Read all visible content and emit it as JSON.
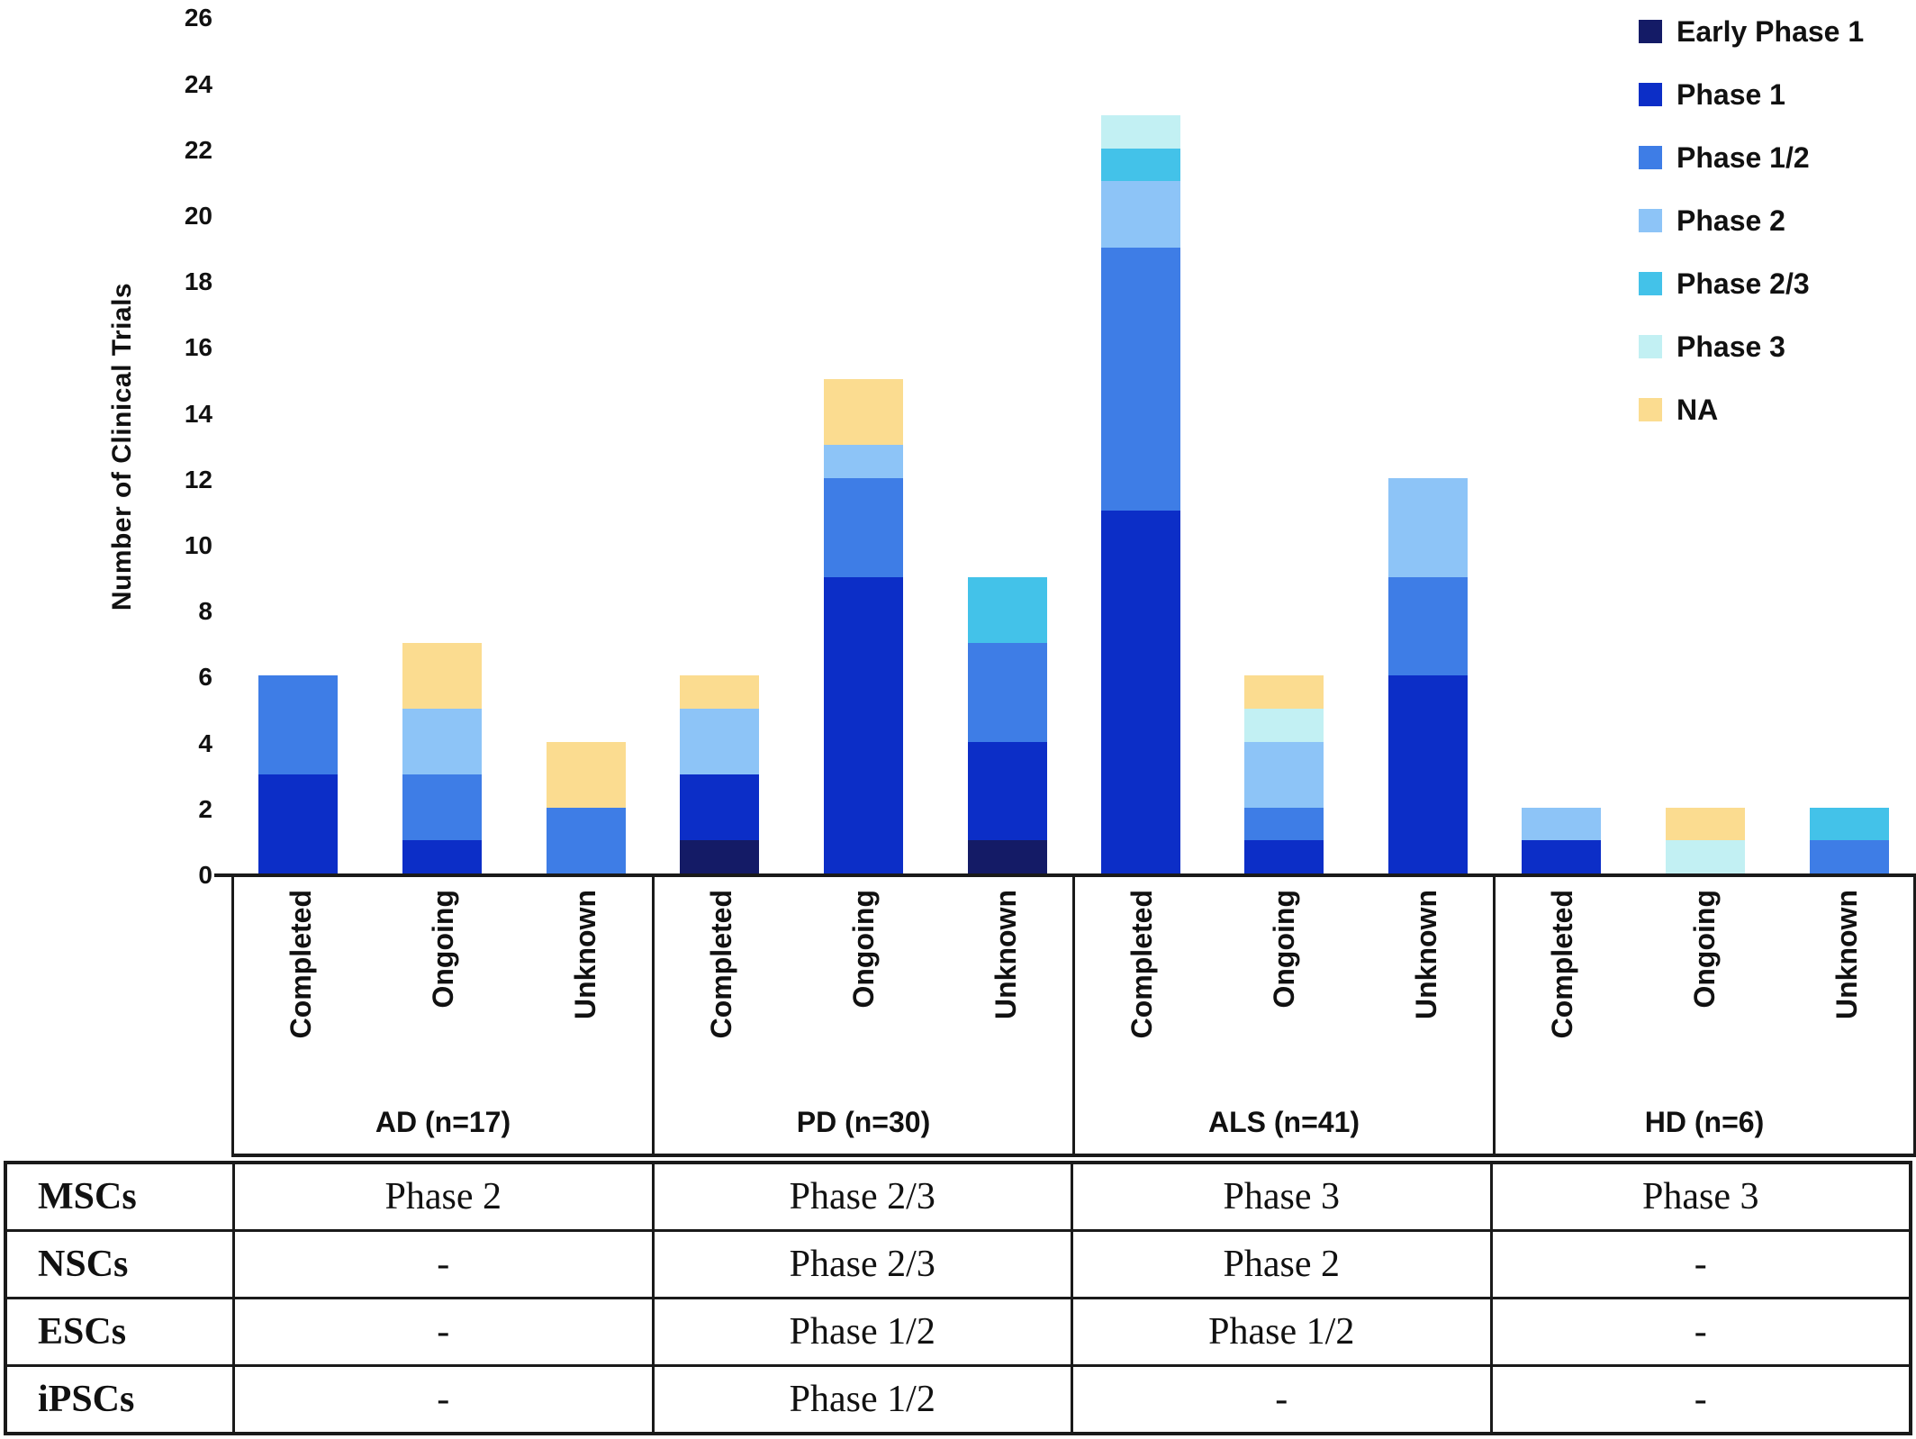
{
  "y_axis": {
    "title": "Number of Clinical Trials",
    "ticks": [
      0,
      2,
      4,
      6,
      8,
      10,
      12,
      14,
      16,
      18,
      20,
      22,
      24,
      26
    ]
  },
  "legend": [
    {
      "label": "Early Phase 1",
      "color": "#141B66"
    },
    {
      "label": "Phase 1",
      "color": "#0C2EC7"
    },
    {
      "label": "Phase 1/2",
      "color": "#3E7DE6"
    },
    {
      "label": "Phase 2",
      "color": "#8DC4F7"
    },
    {
      "label": "Phase 2/3",
      "color": "#43C2E9"
    },
    {
      "label": "Phase 3",
      "color": "#C2F0F3"
    },
    {
      "label": "NA",
      "color": "#FBDC90"
    }
  ],
  "chart_data": {
    "type": "bar",
    "stacked": true,
    "title": "",
    "xlabel": "",
    "ylabel": "Number of Clinical Trials",
    "ylim": [
      0,
      26
    ],
    "ytick_step": 2,
    "grid": false,
    "legend_position": "top-right",
    "statuses": [
      "Completed",
      "Ongoing",
      "Unknown"
    ],
    "groups": [
      {
        "label": "AD (n=17)",
        "total": 17,
        "bars": [
          {
            "status": "Completed",
            "total": 6,
            "segments": [
              [
                "Phase 1",
                3
              ],
              [
                "Phase 1/2",
                3
              ]
            ]
          },
          {
            "status": "Ongoing",
            "total": 7,
            "segments": [
              [
                "Phase 1",
                1
              ],
              [
                "Phase 1/2",
                2
              ],
              [
                "Phase 2",
                2
              ],
              [
                "NA",
                2
              ]
            ]
          },
          {
            "status": "Unknown",
            "total": 4,
            "segments": [
              [
                "Phase 1/2",
                2
              ],
              [
                "NA",
                2
              ]
            ]
          }
        ]
      },
      {
        "label": "PD (n=30)",
        "total": 30,
        "bars": [
          {
            "status": "Completed",
            "total": 6,
            "segments": [
              [
                "Early Phase 1",
                1
              ],
              [
                "Phase 1",
                2
              ],
              [
                "Phase 2",
                2
              ],
              [
                "NA",
                1
              ]
            ]
          },
          {
            "status": "Ongoing",
            "total": 15,
            "segments": [
              [
                "Phase 1",
                9
              ],
              [
                "Phase 1/2",
                3
              ],
              [
                "Phase 2",
                1
              ],
              [
                "NA",
                2
              ]
            ]
          },
          {
            "status": "Unknown",
            "total": 9,
            "segments": [
              [
                "Early Phase 1",
                1
              ],
              [
                "Phase 1",
                3
              ],
              [
                "Phase 1/2",
                3
              ],
              [
                "Phase 2/3",
                2
              ]
            ]
          }
        ]
      },
      {
        "label": "ALS (n=41)",
        "total": 41,
        "bars": [
          {
            "status": "Completed",
            "total": 23,
            "segments": [
              [
                "Phase 1",
                11
              ],
              [
                "Phase 1/2",
                8
              ],
              [
                "Phase 2",
                2
              ],
              [
                "Phase 2/3",
                1
              ],
              [
                "Phase 3",
                1
              ]
            ]
          },
          {
            "status": "Ongoing",
            "total": 6,
            "segments": [
              [
                "Phase 1",
                1
              ],
              [
                "Phase 1/2",
                1
              ],
              [
                "Phase 2",
                2
              ],
              [
                "Phase 3",
                1
              ],
              [
                "NA",
                1
              ]
            ]
          },
          {
            "status": "Unknown",
            "total": 12,
            "segments": [
              [
                "Phase 1",
                6
              ],
              [
                "Phase 1/2",
                3
              ],
              [
                "Phase 2",
                3
              ]
            ]
          }
        ]
      },
      {
        "label": "HD (n=6)",
        "total": 6,
        "bars": [
          {
            "status": "Completed",
            "total": 2,
            "segments": [
              [
                "Phase 1",
                1
              ],
              [
                "Phase 2",
                1
              ]
            ]
          },
          {
            "status": "Ongoing",
            "total": 2,
            "segments": [
              [
                "Phase 3",
                1
              ],
              [
                "NA",
                1
              ]
            ]
          },
          {
            "status": "Unknown",
            "total": 2,
            "segments": [
              [
                "Phase 1/2",
                1
              ],
              [
                "Phase 2/3",
                1
              ]
            ]
          }
        ]
      }
    ]
  },
  "table": {
    "rows": [
      {
        "header": "MSCs",
        "values": [
          "Phase 2",
          "Phase 2/3",
          "Phase 3",
          "Phase 3"
        ]
      },
      {
        "header": "NSCs",
        "values": [
          "-",
          "Phase 2/3",
          "Phase 2",
          "-"
        ]
      },
      {
        "header": "ESCs",
        "values": [
          "-",
          "Phase 1/2",
          "Phase 1/2",
          "-"
        ]
      },
      {
        "header": "iPSCs",
        "values": [
          "-",
          "Phase 1/2",
          "-",
          "-"
        ]
      }
    ]
  }
}
